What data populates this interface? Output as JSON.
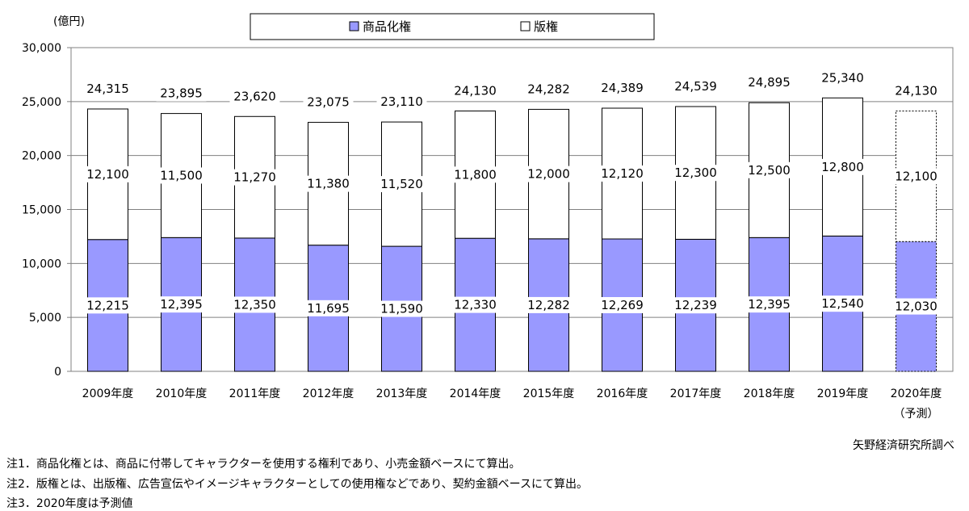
{
  "chart_data": {
    "type": "bar",
    "stacked": true,
    "unit_label": "(億円)",
    "categories": [
      "2009年度",
      "2010年度",
      "2011年度",
      "2012年度",
      "2013年度",
      "2014年度",
      "2015年度",
      "2016年度",
      "2017年度",
      "2018年度",
      "2019年度",
      "2020年度"
    ],
    "forecast_label": "（予測）",
    "series": [
      {
        "name": "商品化権",
        "values": [
          12215,
          12395,
          12350,
          11695,
          11590,
          12330,
          12282,
          12269,
          12239,
          12395,
          12540,
          12030
        ],
        "color": "#9999ff"
      },
      {
        "name": "版権",
        "values": [
          12100,
          11500,
          11270,
          11380,
          11520,
          11800,
          12000,
          12120,
          12300,
          12500,
          12800,
          12100
        ],
        "color": "#ffffff"
      }
    ],
    "totals": [
      24315,
      23895,
      23620,
      23075,
      23110,
      24130,
      24282,
      24389,
      24539,
      24895,
      25340,
      24130
    ],
    "ylim": [
      0,
      30000
    ],
    "yticks": [
      "0",
      "5,000",
      "10,000",
      "15,000",
      "20,000",
      "25,000",
      "30,000"
    ],
    "ytick_values": [
      0,
      5000,
      10000,
      15000,
      20000,
      25000,
      30000
    ],
    "grid": true,
    "legend_position": "top-center"
  },
  "source": "矢野経済研究所調べ",
  "notes": [
    "注1．商品化権とは、商品に付帯してキャラクターを使用する権利であり、小売金額ベースにて算出。",
    "注2．版権とは、出版権、広告宣伝やイメージキャラクターとしての使用権などであり、契約金額ベースにて算出。",
    "注3．2020年度は予測値"
  ]
}
